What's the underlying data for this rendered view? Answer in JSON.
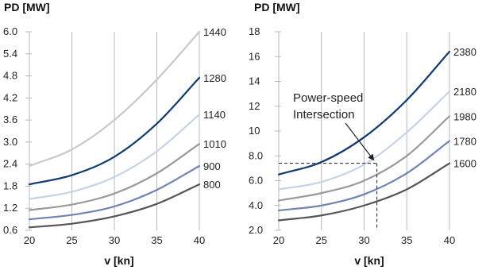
{
  "chart_data": [
    {
      "type": "line",
      "ylabel": "PD [MW]",
      "xlabel": "v [kn]",
      "xlim": [
        20,
        40
      ],
      "ylim": [
        0.6,
        6.0
      ],
      "x_ticks": [
        "20",
        "25",
        "30",
        "35",
        "40"
      ],
      "y_ticks": [
        "0.6",
        "1.2",
        "1.8",
        "2.4",
        "3.0",
        "3.6",
        "4.2",
        "4.8",
        "5.4",
        "6.0"
      ],
      "grid": "vertical",
      "series": [
        {
          "name": "1440",
          "color": "#c9c9c9",
          "x": [
            20,
            25,
            30,
            35,
            40
          ],
          "y": [
            2.35,
            2.8,
            3.6,
            4.7,
            6.0
          ]
        },
        {
          "name": "1280",
          "color": "#0f3b72",
          "x": [
            20,
            25,
            30,
            35,
            40
          ],
          "y": [
            1.85,
            2.1,
            2.6,
            3.5,
            4.75
          ]
        },
        {
          "name": "1140",
          "color": "#c5d3e8",
          "x": [
            20,
            25,
            30,
            35,
            40
          ],
          "y": [
            1.45,
            1.65,
            2.05,
            2.75,
            3.75
          ]
        },
        {
          "name": "1010",
          "color": "#9a9a9a",
          "x": [
            20,
            25,
            30,
            35,
            40
          ],
          "y": [
            1.15,
            1.3,
            1.6,
            2.15,
            2.95
          ]
        },
        {
          "name": "900",
          "color": "#6f84b5",
          "x": [
            20,
            25,
            30,
            35,
            40
          ],
          "y": [
            0.9,
            1.02,
            1.25,
            1.7,
            2.35
          ]
        },
        {
          "name": "800",
          "color": "#555555",
          "x": [
            20,
            25,
            30,
            35,
            40
          ],
          "y": [
            0.68,
            0.78,
            0.98,
            1.32,
            1.85
          ]
        }
      ]
    },
    {
      "type": "line",
      "ylabel": "PD [MW]",
      "xlabel": "v [kn]",
      "xlim": [
        20,
        40
      ],
      "ylim": [
        2.0,
        18
      ],
      "x_ticks": [
        "20",
        "25",
        "30",
        "35",
        "40"
      ],
      "y_ticks": [
        "2.0",
        "4.0",
        "6.0",
        "8.0",
        "10",
        "12",
        "14",
        "16",
        "18"
      ],
      "grid": "vertical",
      "annotation": {
        "text_lines": [
          "Power-speed",
          "Intersection"
        ],
        "point": [
          31.5,
          7.4
        ]
      },
      "series": [
        {
          "name": "2380",
          "color": "#0f3b72",
          "x": [
            20,
            25,
            30,
            35,
            40
          ],
          "y": [
            6.5,
            7.5,
            9.5,
            12.5,
            16.4
          ]
        },
        {
          "name": "2180",
          "color": "#c5d3e8",
          "x": [
            20,
            25,
            30,
            35,
            40
          ],
          "y": [
            5.3,
            5.9,
            7.3,
            9.9,
            13.2
          ]
        },
        {
          "name": "1980",
          "color": "#9a9a9a",
          "x": [
            20,
            25,
            30,
            35,
            40
          ],
          "y": [
            4.4,
            5.0,
            6.0,
            8.0,
            11.2
          ]
        },
        {
          "name": "1780",
          "color": "#6f84b5",
          "x": [
            20,
            25,
            30,
            35,
            40
          ],
          "y": [
            3.6,
            4.0,
            4.9,
            6.6,
            9.2
          ]
        },
        {
          "name": "1600",
          "color": "#555555",
          "x": [
            20,
            25,
            30,
            35,
            40
          ],
          "y": [
            2.8,
            3.2,
            4.0,
            5.3,
            7.4
          ]
        }
      ]
    }
  ]
}
